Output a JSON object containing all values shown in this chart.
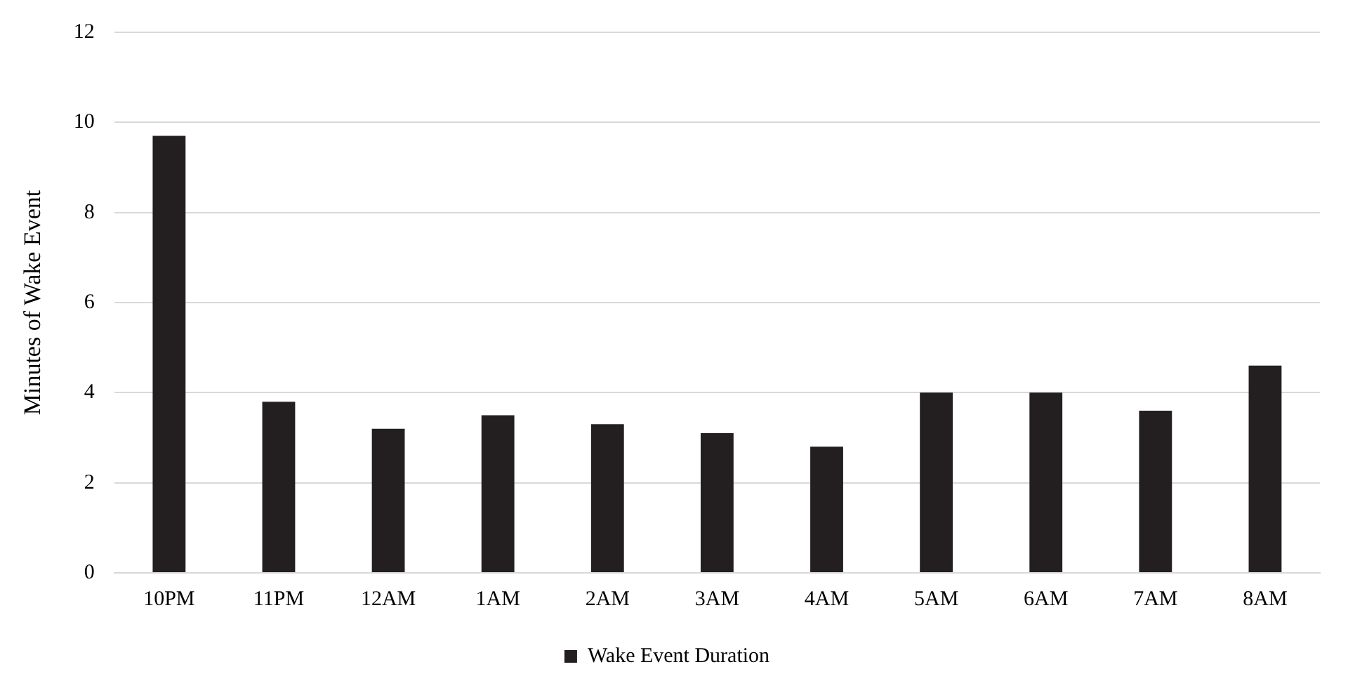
{
  "chart_data": {
    "type": "bar",
    "ylabel": "Minutes of Wake Event",
    "categories": [
      "10PM",
      "11PM",
      "12AM",
      "1AM",
      "2AM",
      "3AM",
      "4AM",
      "5AM",
      "6AM",
      "7AM",
      "8AM"
    ],
    "series": [
      {
        "name": "Wake Event Duration",
        "color": "#231f20",
        "values": [
          9.7,
          3.8,
          3.2,
          3.5,
          3.3,
          3.1,
          2.8,
          4.0,
          4.0,
          3.6,
          4.6
        ]
      }
    ],
    "ylim": [
      0,
      12
    ],
    "yticks": [
      0,
      2,
      4,
      6,
      8,
      10,
      12
    ],
    "grid": "y",
    "legend": "bottom"
  }
}
